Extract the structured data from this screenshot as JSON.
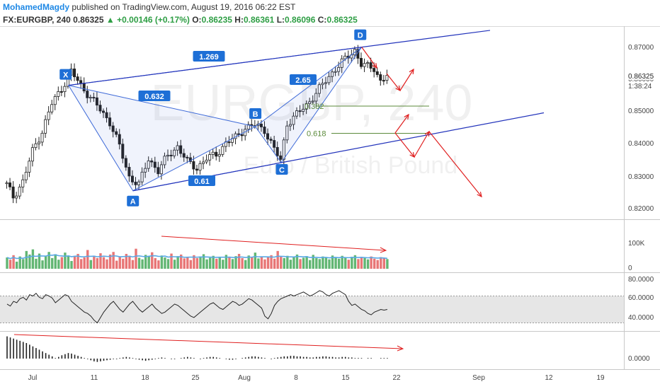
{
  "header": {
    "author": "MohamedMagdy",
    "published_text": "published on TradingView.com, August 19, 2016 06:22 EST",
    "symbol": "FX:EURGBP, 240",
    "last": "0.86325",
    "change": "+0.00146 (+0.17%)",
    "o_label": "O:",
    "o_value": "0.86235",
    "h_label": "H:",
    "h_value": "0.86361",
    "l_label": "L:",
    "l_value": "0.86096",
    "c_label": "C:",
    "c_value": "0.86325"
  },
  "colors": {
    "bull": "#2e9e44",
    "bear": "#e04848",
    "pattern": "#3f6bd8",
    "fib": "#5b8a3a",
    "projection": "#e02020",
    "badge": "#1e6fd6"
  },
  "chart_data": {
    "type": "candlestick",
    "symbol": "FX:EURGBP",
    "interval": "240",
    "watermark": "EURGBP, 240",
    "watermark_sub": "Euro / British Pound",
    "x_ticks": [
      "Jul",
      "11",
      "18",
      "25",
      "Aug",
      "8",
      "15",
      "22",
      "Sep",
      "12",
      "19"
    ],
    "y_ticks": [
      "0.87000",
      "0.86000",
      "0.85000",
      "0.84000",
      "0.83000",
      "0.82000"
    ],
    "y_range": [
      0.8185,
      0.8775
    ],
    "last_price_label": "0.86325",
    "countdown_label": "1:38:24",
    "price_path": [
      {
        "x": 0,
        "y": 0.8275
      },
      {
        "x": 2,
        "y": 0.8235
      },
      {
        "x": 5,
        "y": 0.8285
      },
      {
        "x": 8,
        "y": 0.8385
      },
      {
        "x": 11,
        "y": 0.845
      },
      {
        "x": 14,
        "y": 0.854
      },
      {
        "x": 17,
        "y": 0.859
      },
      {
        "x": 20,
        "y": 0.8645
      },
      {
        "x": 23,
        "y": 0.86
      },
      {
        "x": 26,
        "y": 0.856
      },
      {
        "x": 29,
        "y": 0.852
      },
      {
        "x": 32,
        "y": 0.848
      },
      {
        "x": 35,
        "y": 0.84
      },
      {
        "x": 38,
        "y": 0.83
      },
      {
        "x": 41,
        "y": 0.8275
      },
      {
        "x": 44,
        "y": 0.836
      },
      {
        "x": 47,
        "y": 0.832
      },
      {
        "x": 50,
        "y": 0.837
      },
      {
        "x": 53,
        "y": 0.84
      },
      {
        "x": 56,
        "y": 0.835
      },
      {
        "x": 59,
        "y": 0.833
      },
      {
        "x": 62,
        "y": 0.836
      },
      {
        "x": 65,
        "y": 0.8375
      },
      {
        "x": 68,
        "y": 0.841
      },
      {
        "x": 71,
        "y": 0.843
      },
      {
        "x": 74,
        "y": 0.846
      },
      {
        "x": 77,
        "y": 0.847
      },
      {
        "x": 80,
        "y": 0.8455
      },
      {
        "x": 83,
        "y": 0.839
      },
      {
        "x": 85,
        "y": 0.8355
      },
      {
        "x": 87,
        "y": 0.8475
      },
      {
        "x": 90,
        "y": 0.8505
      },
      {
        "x": 93,
        "y": 0.8535
      },
      {
        "x": 96,
        "y": 0.8575
      },
      {
        "x": 99,
        "y": 0.8615
      },
      {
        "x": 102,
        "y": 0.8655
      },
      {
        "x": 105,
        "y": 0.8685
      },
      {
        "x": 108,
        "y": 0.8715
      },
      {
        "x": 110,
        "y": 0.867
      },
      {
        "x": 112,
        "y": 0.866
      },
      {
        "x": 114,
        "y": 0.8655
      },
      {
        "x": 116,
        "y": 0.8615
      },
      {
        "x": 118,
        "y": 0.8632
      }
    ],
    "pattern_points": [
      {
        "label": "X",
        "x": 19.5,
        "y": 0.86
      },
      {
        "label": "A",
        "x": 39.5,
        "y": 0.8255
      },
      {
        "label": "B",
        "x": 77.5,
        "y": 0.8465
      },
      {
        "label": "C",
        "x": 85.5,
        "y": 0.8347
      },
      {
        "label": "D",
        "x": 110.5,
        "y": 0.8725
      }
    ],
    "ratios": [
      "1.269",
      "0.632",
      "0.61",
      "2.65"
    ],
    "fib_levels": [
      {
        "label": "0.382",
        "value": 0.8532
      },
      {
        "label": "0.618",
        "value": 0.8443
      }
    ],
    "volume": {
      "y_ticks": [
        "100K",
        "0"
      ],
      "values": [
        35,
        28,
        42,
        22,
        38,
        30,
        55,
        44,
        60,
        31,
        47,
        26,
        39,
        52,
        33,
        45,
        28,
        36,
        50,
        41,
        24,
        38,
        46,
        30,
        35,
        58,
        27,
        40,
        33,
        48,
        36,
        29,
        44,
        52,
        25,
        37,
        31,
        46,
        40,
        27,
        62,
        34,
        29,
        43,
        38,
        51,
        33,
        26,
        41,
        35,
        30,
        47,
        28,
        39,
        44,
        32,
        36,
        27,
        42,
        33,
        38,
        45,
        29,
        34,
        40,
        31,
        37,
        28,
        43,
        35,
        30,
        39,
        46,
        33,
        27,
        41,
        36,
        50,
        32,
        38,
        29,
        35,
        42,
        31,
        55,
        37,
        33,
        40,
        28,
        36,
        44,
        30,
        34,
        39,
        27,
        43,
        33,
        30,
        38,
        35,
        29,
        41,
        36,
        31,
        40,
        34,
        28,
        37,
        42,
        30,
        35,
        33,
        29,
        38,
        31,
        27,
        36,
        32,
        30
      ]
    },
    "oscillator": {
      "y_ticks": [
        "80.0000",
        "60.0000",
        "40.0000"
      ],
      "band": [
        70,
        30
      ],
      "values": [
        58,
        55,
        62,
        60,
        66,
        68,
        64,
        72,
        70,
        74,
        68,
        66,
        72,
        70,
        67,
        60,
        64,
        68,
        72,
        70,
        62,
        58,
        54,
        50,
        46,
        44,
        40,
        34,
        30,
        38,
        46,
        52,
        58,
        62,
        56,
        50,
        46,
        52,
        58,
        62,
        56,
        50,
        46,
        50,
        54,
        58,
        52,
        48,
        44,
        46,
        50,
        54,
        58,
        56,
        52,
        48,
        44,
        40,
        38,
        42,
        46,
        50,
        54,
        58,
        60,
        56,
        52,
        50,
        54,
        58,
        62,
        60,
        56,
        58,
        62,
        66,
        64,
        60,
        56,
        52,
        40,
        36,
        44,
        56,
        62,
        66,
        68,
        70,
        72,
        70,
        72,
        74,
        76,
        73,
        70,
        72,
        75,
        78,
        76,
        72,
        70,
        74,
        76,
        78,
        75,
        72,
        62,
        56,
        58,
        54,
        50,
        48,
        44,
        42,
        46,
        48,
        50,
        49,
        50
      ]
    },
    "momentum": {
      "y_ticks": [
        "0.0000"
      ],
      "values": [
        0.004,
        0.0038,
        0.0036,
        0.0034,
        0.0032,
        0.003,
        0.0028,
        0.0025,
        0.0022,
        0.0019,
        0.0016,
        0.0013,
        0.001,
        0.0007,
        0.0004,
        0.0001,
        0.0003,
        0.0006,
        0.0008,
        0.001,
        0.0009,
        0.0007,
        0.0005,
        0.0003,
        0.0001,
        -0.0001,
        -0.0003,
        -0.0005,
        -0.0006,
        -0.0005,
        -0.0004,
        -0.0003,
        -0.0002,
        -0.0001,
        -0.0001,
        0.0001,
        0.0002,
        0.0003,
        0.0002,
        0.0001,
        -0.0001,
        -0.0002,
        -0.0003,
        -0.0004,
        -0.0003,
        -0.0002,
        -0.0001,
        0.0001,
        0.0002,
        0.0001,
        0.0,
        -0.0001,
        -0.0001,
        0.0,
        0.0001,
        0.0002,
        0.0003,
        0.0002,
        0.0001,
        0.0,
        -0.0001,
        0.0001,
        0.0002,
        0.0003,
        0.0003,
        0.0002,
        0.0001,
        0.0,
        -0.0001,
        -0.0002,
        -0.0002,
        -0.0001,
        0.0,
        0.0001,
        0.0002,
        0.0003,
        0.0004,
        0.0004,
        0.0003,
        0.0002,
        0.0001,
        0.0,
        -0.0001,
        0.0001,
        0.0002,
        0.0003,
        0.0004,
        0.0004,
        0.0005,
        0.0005,
        0.0004,
        0.0004,
        0.0003,
        0.0003,
        0.0002,
        0.0002,
        0.0003,
        0.0003,
        0.0004,
        0.0004,
        0.0003,
        0.0003,
        0.0002,
        0.0002,
        0.0003,
        0.0003,
        0.0002,
        0.0002,
        0.0001,
        0.0001,
        0.0001,
        0.0,
        0.0001,
        0.0001,
        0.0,
        0.0,
        0.0001,
        0.0001,
        0.0001
      ]
    }
  }
}
